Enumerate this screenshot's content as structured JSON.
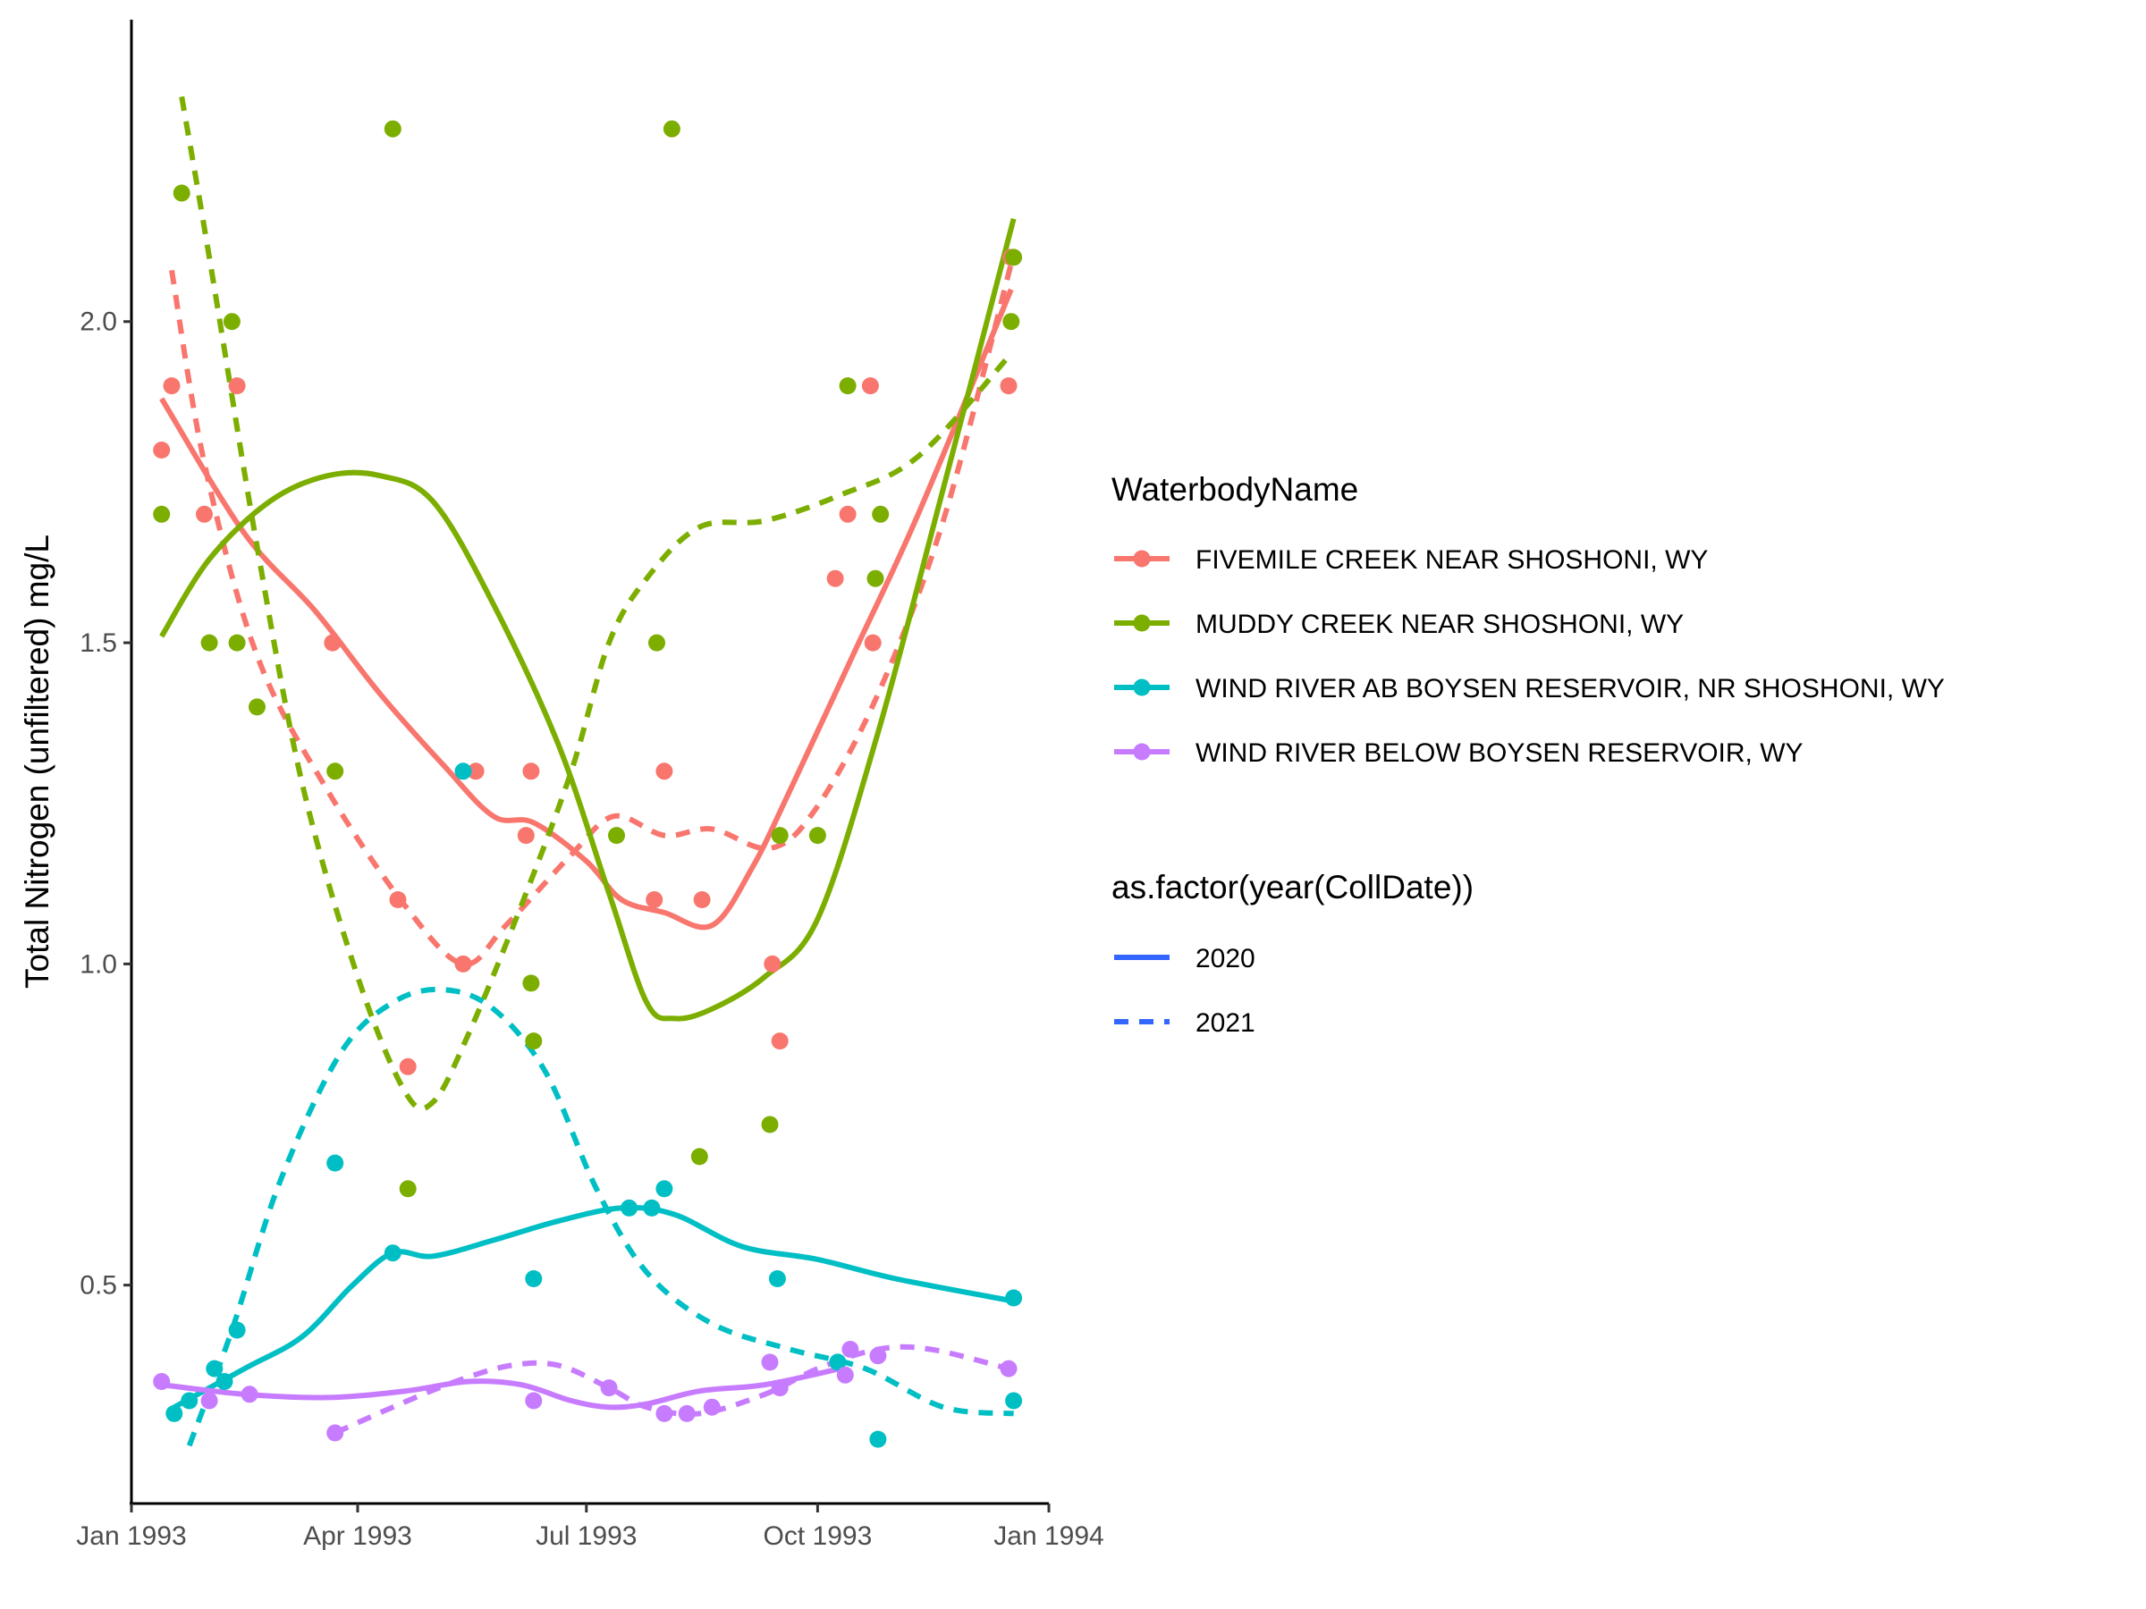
{
  "chart_data": {
    "type": "scatter",
    "title": "",
    "xlabel": "",
    "ylabel": "Total Nitrogen (unfiltered) mg/L",
    "xlim": [
      "1993-01-01",
      "1994-01-01"
    ],
    "ylim": [
      0.16,
      2.47
    ],
    "x_ticks": [
      "1993-01-01",
      "1993-04-01",
      "1993-07-01",
      "1993-10-01",
      "1994-01-01"
    ],
    "x_tick_labels": [
      "Jan 1993",
      "Apr 1993",
      "Jul 1993",
      "Oct 1993",
      "Jan 1994"
    ],
    "y_ticks": [
      0.5,
      1.0,
      1.5,
      2.0
    ],
    "y_tick_labels": [
      "0.5",
      "1.0",
      "1.5",
      "2.0"
    ],
    "grid": false,
    "legend_position": "right",
    "legends": [
      {
        "title": "WaterbodyName",
        "entries": [
          {
            "label": "FIVEMILE CREEK NEAR SHOSHONI, WY",
            "color": "#F8766D"
          },
          {
            "label": "MUDDY CREEK NEAR SHOSHONI, WY",
            "color": "#7CAE00"
          },
          {
            "label": "WIND RIVER AB BOYSEN RESERVOIR, NR SHOSHONI, WY",
            "color": "#00BFC4"
          },
          {
            "label": "WIND RIVER BELOW BOYSEN RESERVOIR, WY",
            "color": "#C77CFF"
          }
        ]
      },
      {
        "title": "as.factor(year(CollDate))",
        "entries": [
          {
            "label": "2020",
            "linetype": "solid",
            "color": "#3366FF"
          },
          {
            "label": "2021",
            "linetype": "dashed",
            "color": "#3366FF"
          }
        ]
      }
    ],
    "series": [
      {
        "name": "FIVEMILE CREEK NEAR SHOSHONI, WY",
        "color": "#F8766D",
        "points": [
          [
            "1993-01-13",
            1.8
          ],
          [
            "1993-01-17",
            1.9
          ],
          [
            "1993-01-30",
            1.7
          ],
          [
            "1993-02-12",
            1.9
          ],
          [
            "1993-03-22",
            1.5
          ],
          [
            "1993-04-17",
            1.1
          ],
          [
            "1993-04-21",
            0.84
          ],
          [
            "1993-05-13",
            1.0
          ],
          [
            "1993-05-18",
            1.3
          ],
          [
            "1993-06-07",
            1.2
          ],
          [
            "1993-06-09",
            1.3
          ],
          [
            "1993-07-28",
            1.1
          ],
          [
            "1993-08-01",
            1.3
          ],
          [
            "1993-08-16",
            1.1
          ],
          [
            "1993-09-13",
            1.0
          ],
          [
            "1993-09-16",
            0.88
          ],
          [
            "1993-10-08",
            1.6
          ],
          [
            "1993-10-13",
            1.7
          ],
          [
            "1993-10-22",
            1.9
          ],
          [
            "1993-10-23",
            1.5
          ],
          [
            "1993-12-16",
            1.9
          ],
          [
            "1993-12-17",
            2.1
          ]
        ],
        "lines": [
          {
            "year": "2020",
            "points": [
              [
                "1993-01-13",
                1.88
              ],
              [
                "1993-02-15",
                1.67
              ],
              [
                "1993-03-15",
                1.55
              ],
              [
                "1993-04-10",
                1.42
              ],
              [
                "1993-05-05",
                1.31
              ],
              [
                "1993-05-25",
                1.23
              ],
              [
                "1993-06-10",
                1.22
              ],
              [
                "1993-07-01",
                1.16
              ],
              [
                "1993-07-15",
                1.1
              ],
              [
                "1993-08-01",
                1.08
              ],
              [
                "1993-08-20",
                1.06
              ],
              [
                "1993-09-05",
                1.15
              ],
              [
                "1993-09-20",
                1.27
              ],
              [
                "1993-10-15",
                1.48
              ],
              [
                "1993-11-10",
                1.7
              ],
              [
                "1993-12-17",
                2.05
              ]
            ]
          },
          {
            "year": "2021",
            "points": [
              [
                "1993-01-17",
                2.08
              ],
              [
                "1993-01-30",
                1.78
              ],
              [
                "1993-02-20",
                1.48
              ],
              [
                "1993-03-20",
                1.27
              ],
              [
                "1993-04-20",
                1.09
              ],
              [
                "1993-05-13",
                1.0
              ],
              [
                "1993-05-30",
                1.06
              ],
              [
                "1993-06-25",
                1.17
              ],
              [
                "1993-07-12",
                1.23
              ],
              [
                "1993-08-01",
                1.2
              ],
              [
                "1993-08-20",
                1.21
              ],
              [
                "1993-09-12",
                1.18
              ],
              [
                "1993-09-30",
                1.24
              ],
              [
                "1993-10-25",
                1.42
              ],
              [
                "1993-11-20",
                1.69
              ],
              [
                "1993-12-17",
                2.09
              ]
            ]
          }
        ]
      },
      {
        "name": "MUDDY CREEK NEAR SHOSHONI, WY",
        "color": "#7CAE00",
        "points": [
          [
            "1993-01-13",
            1.7
          ],
          [
            "1993-01-21",
            2.2
          ],
          [
            "1993-02-10",
            2.0
          ],
          [
            "1993-02-12",
            1.5
          ],
          [
            "1993-02-01",
            1.5
          ],
          [
            "1993-02-20",
            1.4
          ],
          [
            "1993-03-23",
            1.3
          ],
          [
            "1993-04-15",
            2.3
          ],
          [
            "1993-04-21",
            0.65
          ],
          [
            "1993-06-09",
            0.97
          ],
          [
            "1993-06-10",
            0.88
          ],
          [
            "1993-07-13",
            1.2
          ],
          [
            "1993-07-29",
            1.5
          ],
          [
            "1993-08-04",
            2.3
          ],
          [
            "1993-08-15",
            0.7
          ],
          [
            "1993-09-12",
            0.75
          ],
          [
            "1993-09-16",
            1.2
          ],
          [
            "1993-10-01",
            1.2
          ],
          [
            "1993-10-13",
            1.9
          ],
          [
            "1993-10-24",
            1.6
          ],
          [
            "1993-10-26",
            1.7
          ],
          [
            "1993-12-17",
            2.0
          ],
          [
            "1993-12-18",
            2.1
          ]
        ],
        "lines": [
          {
            "year": "2020",
            "points": [
              [
                "1993-01-13",
                1.51
              ],
              [
                "1993-02-01",
                1.63
              ],
              [
                "1993-02-25",
                1.72
              ],
              [
                "1993-03-20",
                1.76
              ],
              [
                "1993-04-10",
                1.76
              ],
              [
                "1993-05-01",
                1.72
              ],
              [
                "1993-05-25",
                1.56
              ],
              [
                "1993-06-20",
                1.34
              ],
              [
                "1993-07-10",
                1.11
              ],
              [
                "1993-07-25",
                0.94
              ],
              [
                "1993-08-05",
                0.915
              ],
              [
                "1993-08-20",
                0.93
              ],
              [
                "1993-09-10",
                0.98
              ],
              [
                "1993-10-01",
                1.07
              ],
              [
                "1993-10-25",
                1.36
              ],
              [
                "1993-11-20",
                1.74
              ],
              [
                "1993-12-18",
                2.16
              ]
            ]
          },
          {
            "year": "2021",
            "points": [
              [
                "1993-01-21",
                2.35
              ],
              [
                "1993-02-01",
                2.1
              ],
              [
                "1993-02-20",
                1.65
              ],
              [
                "1993-03-10",
                1.28
              ],
              [
                "1993-04-01",
                0.98
              ],
              [
                "1993-04-20",
                0.8
              ],
              [
                "1993-05-01",
                0.785
              ],
              [
                "1993-05-15",
                0.89
              ],
              [
                "1993-06-05",
                1.09
              ],
              [
                "1993-06-25",
                1.3
              ],
              [
                "1993-07-10",
                1.5
              ],
              [
                "1993-07-25",
                1.6
              ],
              [
                "1993-08-15",
                1.68
              ],
              [
                "1993-09-10",
                1.69
              ],
              [
                "1993-10-10",
                1.73
              ],
              [
                "1993-11-10",
                1.79
              ],
              [
                "1993-12-17",
                1.95
              ]
            ]
          }
        ]
      },
      {
        "name": "WIND RIVER AB BOYSEN RESERVOIR, NR SHOSHONI, WY",
        "color": "#00BFC4",
        "points": [
          [
            "1993-01-18",
            0.3
          ],
          [
            "1993-01-24",
            0.32
          ],
          [
            "1993-02-03",
            0.37
          ],
          [
            "1993-02-07",
            0.35
          ],
          [
            "1993-02-12",
            0.43
          ],
          [
            "1993-03-23",
            0.69
          ],
          [
            "1993-04-15",
            0.55
          ],
          [
            "1993-05-13",
            1.3
          ],
          [
            "1993-06-10",
            0.51
          ],
          [
            "1993-07-18",
            0.62
          ],
          [
            "1993-08-01",
            0.65
          ],
          [
            "1993-07-27",
            0.62
          ],
          [
            "1993-09-15",
            0.51
          ],
          [
            "1993-10-09",
            0.38
          ],
          [
            "1993-10-25",
            0.26
          ],
          [
            "1993-12-18",
            0.32
          ],
          [
            "1993-12-18",
            0.48
          ]
        ],
        "lines": [
          {
            "year": "2020",
            "points": [
              [
                "1993-01-18",
                0.31
              ],
              [
                "1993-02-15",
                0.37
              ],
              [
                "1993-03-10",
                0.42
              ],
              [
                "1993-03-30",
                0.5
              ],
              [
                "1993-04-15",
                0.55
              ],
              [
                "1993-05-01",
                0.545
              ],
              [
                "1993-05-25",
                0.57
              ],
              [
                "1993-06-20",
                0.6
              ],
              [
                "1993-07-15",
                0.62
              ],
              [
                "1993-08-05",
                0.61
              ],
              [
                "1993-09-01",
                0.56
              ],
              [
                "1993-10-01",
                0.54
              ],
              [
                "1993-11-01",
                0.51
              ],
              [
                "1993-12-18",
                0.475
              ]
            ]
          },
          {
            "year": "2021",
            "points": [
              [
                "1993-01-24",
                0.25
              ],
              [
                "1993-02-10",
                0.43
              ],
              [
                "1993-03-01",
                0.66
              ],
              [
                "1993-03-25",
                0.86
              ],
              [
                "1993-04-15",
                0.94
              ],
              [
                "1993-05-05",
                0.96
              ],
              [
                "1993-05-25",
                0.93
              ],
              [
                "1993-06-15",
                0.83
              ],
              [
                "1993-07-05",
                0.65
              ],
              [
                "1993-07-25",
                0.52
              ],
              [
                "1993-08-20",
                0.44
              ],
              [
                "1993-09-20",
                0.4
              ],
              [
                "1993-10-20",
                0.37
              ],
              [
                "1993-11-20",
                0.31
              ],
              [
                "1993-12-18",
                0.3
              ]
            ]
          }
        ]
      },
      {
        "name": "WIND RIVER BELOW BOYSEN RESERVOIR, WY",
        "color": "#C77CFF",
        "points": [
          [
            "1993-01-13",
            0.35
          ],
          [
            "1993-02-01",
            0.32
          ],
          [
            "1993-02-17",
            0.33
          ],
          [
            "1993-03-23",
            0.27
          ],
          [
            "1993-06-10",
            0.32
          ],
          [
            "1993-07-10",
            0.34
          ],
          [
            "1993-08-01",
            0.3
          ],
          [
            "1993-08-10",
            0.3
          ],
          [
            "1993-08-20",
            0.31
          ],
          [
            "1993-09-12",
            0.38
          ],
          [
            "1993-09-16",
            0.34
          ],
          [
            "1993-10-12",
            0.36
          ],
          [
            "1993-10-14",
            0.4
          ],
          [
            "1993-10-25",
            0.39
          ],
          [
            "1993-12-16",
            0.37
          ]
        ],
        "lines": [
          {
            "year": "2020",
            "points": [
              [
                "1993-01-13",
                0.345
              ],
              [
                "1993-02-15",
                0.33
              ],
              [
                "1993-03-20",
                0.325
              ],
              [
                "1993-04-20",
                0.335
              ],
              [
                "1993-05-15",
                0.35
              ],
              [
                "1993-06-05",
                0.345
              ],
              [
                "1993-06-25",
                0.32
              ],
              [
                "1993-07-10",
                0.31
              ],
              [
                "1993-07-25",
                0.315
              ],
              [
                "1993-08-15",
                0.335
              ],
              [
                "1993-09-10",
                0.345
              ],
              [
                "1993-10-10",
                0.37
              ]
            ]
          },
          {
            "year": "2021",
            "points": [
              [
                "1993-03-23",
                0.27
              ],
              [
                "1993-04-15",
                0.31
              ],
              [
                "1993-05-10",
                0.35
              ],
              [
                "1993-06-01",
                0.375
              ],
              [
                "1993-06-20",
                0.375
              ],
              [
                "1993-07-10",
                0.34
              ],
              [
                "1993-07-25",
                0.31
              ],
              [
                "1993-08-15",
                0.3
              ],
              [
                "1993-09-10",
                0.33
              ],
              [
                "1993-10-01",
                0.37
              ],
              [
                "1993-10-25",
                0.4
              ],
              [
                "1993-11-15",
                0.4
              ],
              [
                "1993-12-16",
                0.37
              ]
            ]
          }
        ]
      }
    ]
  }
}
